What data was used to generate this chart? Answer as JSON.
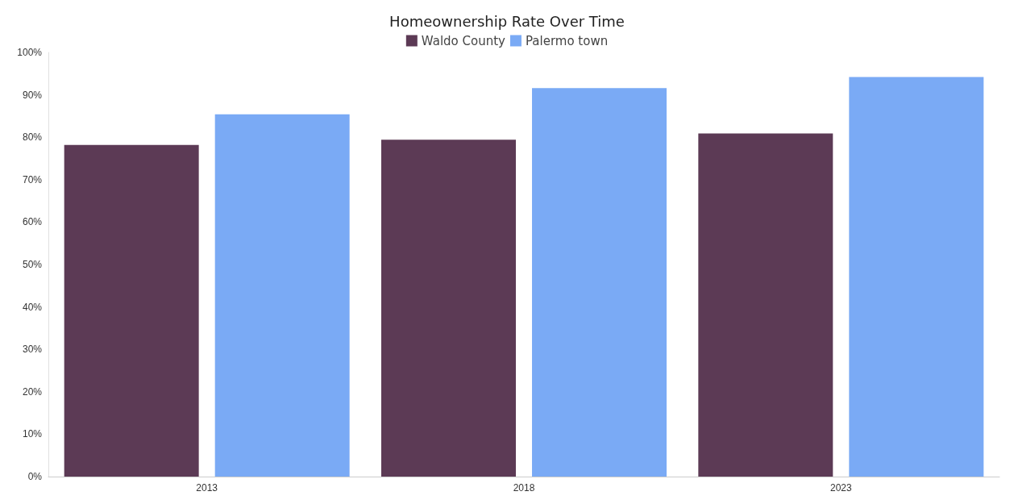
{
  "chart_data": {
    "type": "bar",
    "title": "Homeownership Rate Over Time",
    "categories": [
      "2013",
      "2018",
      "2023"
    ],
    "series": [
      {
        "name": "Waldo County",
        "color": "#5c3a55",
        "values": [
          78.2,
          79.4,
          80.9
        ]
      },
      {
        "name": "Palermo town",
        "color": "#7aaaf5",
        "values": [
          85.4,
          91.6,
          94.2
        ]
      }
    ],
    "ylim": [
      0,
      100
    ],
    "yticks": [
      {
        "value": 0,
        "label": "0%"
      },
      {
        "value": 10,
        "label": "10%"
      },
      {
        "value": 20,
        "label": "20%"
      },
      {
        "value": 30,
        "label": "30%"
      },
      {
        "value": 40,
        "label": "40%"
      },
      {
        "value": 50,
        "label": "50%"
      },
      {
        "value": 60,
        "label": "60%"
      },
      {
        "value": 70,
        "label": "70%"
      },
      {
        "value": 80,
        "label": "80%"
      },
      {
        "value": 90,
        "label": "90%"
      },
      {
        "value": 100,
        "label": "100%"
      }
    ],
    "grid": false,
    "legend": "top"
  }
}
